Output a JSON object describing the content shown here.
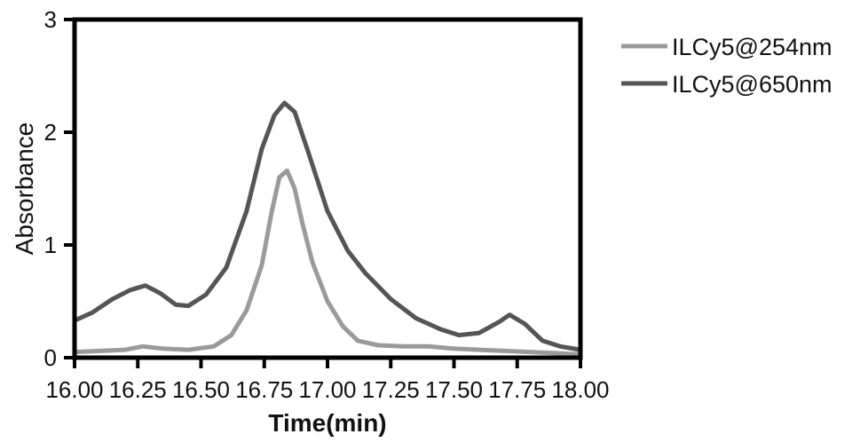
{
  "chart_data": {
    "type": "line",
    "title": "",
    "xlabel": "Time(min)",
    "ylabel": "Absorbance",
    "xlim": [
      16.0,
      18.0
    ],
    "ylim": [
      0,
      3
    ],
    "xticks": [
      16.0,
      16.25,
      16.5,
      16.75,
      17.0,
      17.25,
      17.5,
      17.75,
      18.0
    ],
    "xtick_labels": [
      "16.00",
      "16.25",
      "16.50",
      "16.75",
      "17.00",
      "17.25",
      "17.50",
      "17.75",
      "18.00"
    ],
    "yticks": [
      0,
      1,
      2,
      3
    ],
    "ytick_labels": [
      "0",
      "1",
      "2",
      "3"
    ],
    "grid": false,
    "legend_position": "top-right, outside plot",
    "series": [
      {
        "name": "ILCy5@254nm",
        "color": "#9a9a9a",
        "x": [
          16.0,
          16.1,
          16.2,
          16.27,
          16.35,
          16.45,
          16.55,
          16.62,
          16.68,
          16.74,
          16.78,
          16.81,
          16.84,
          16.87,
          16.9,
          16.94,
          17.0,
          17.06,
          17.12,
          17.2,
          17.3,
          17.4,
          17.5,
          17.6,
          17.7,
          17.8,
          17.9,
          18.0
        ],
        "y": [
          0.05,
          0.06,
          0.07,
          0.1,
          0.08,
          0.07,
          0.1,
          0.2,
          0.42,
          0.82,
          1.3,
          1.6,
          1.66,
          1.5,
          1.2,
          0.85,
          0.5,
          0.28,
          0.15,
          0.11,
          0.1,
          0.1,
          0.08,
          0.07,
          0.06,
          0.05,
          0.04,
          0.03
        ]
      },
      {
        "name": "ILCy5@650nm",
        "color": "#555555",
        "x": [
          16.0,
          16.07,
          16.15,
          16.22,
          16.28,
          16.34,
          16.4,
          16.45,
          16.52,
          16.6,
          16.68,
          16.74,
          16.79,
          16.83,
          16.87,
          16.92,
          17.0,
          17.08,
          17.15,
          17.25,
          17.35,
          17.45,
          17.52,
          17.6,
          17.68,
          17.72,
          17.78,
          17.85,
          17.92,
          18.0
        ],
        "y": [
          0.33,
          0.4,
          0.52,
          0.6,
          0.64,
          0.57,
          0.47,
          0.46,
          0.56,
          0.8,
          1.3,
          1.85,
          2.15,
          2.26,
          2.18,
          1.85,
          1.3,
          0.95,
          0.75,
          0.52,
          0.35,
          0.25,
          0.2,
          0.22,
          0.32,
          0.38,
          0.3,
          0.15,
          0.1,
          0.07
        ]
      }
    ]
  }
}
